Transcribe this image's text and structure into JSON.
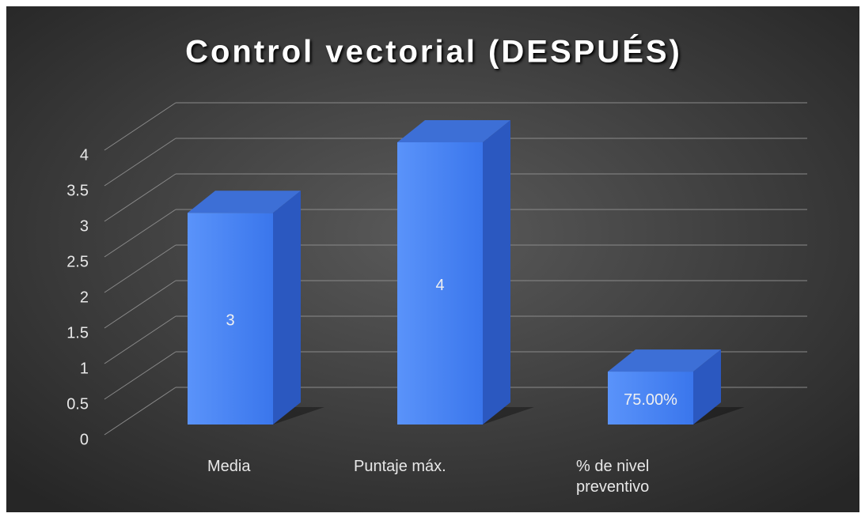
{
  "chart_data": {
    "type": "bar3d",
    "title": "Control vectorial (DESPUÉS)",
    "categories": [
      "Media",
      "Puntaje máx.",
      "% de nivel preventivo"
    ],
    "values": [
      3,
      4,
      0.75
    ],
    "value_labels": [
      "3",
      "4",
      "75.00%"
    ],
    "color": "#4a86f2",
    "ylim": [
      0,
      4
    ],
    "yticks": [
      0,
      0.5,
      1,
      1.5,
      2,
      2.5,
      3,
      3.5,
      4
    ],
    "grid": true
  }
}
